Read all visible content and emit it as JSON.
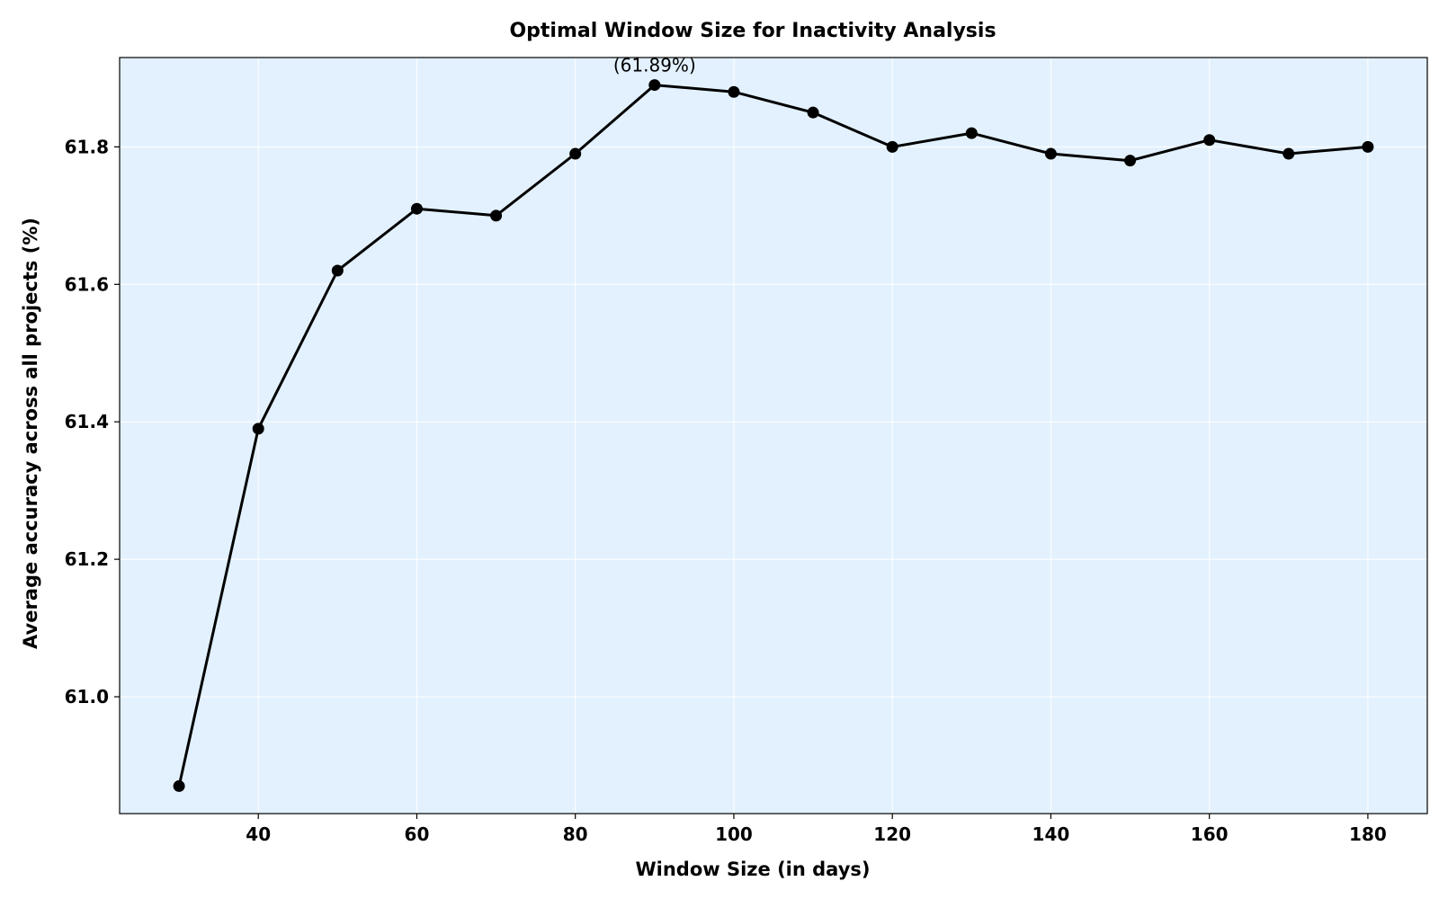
{
  "chart_data": {
    "type": "line",
    "title": "Optimal Window Size for Inactivity Analysis",
    "xlabel": "Window Size (in days)",
    "ylabel": "Average accuracy across all projects (%)",
    "xlim": [
      22.5,
      187.5
    ],
    "ylim": [
      60.83,
      61.93
    ],
    "xticks": [
      40,
      60,
      80,
      100,
      120,
      140,
      160,
      180
    ],
    "yticks": [
      61.0,
      61.2,
      61.4,
      61.6,
      61.8
    ],
    "xtick_labels": [
      "40",
      "60",
      "80",
      "100",
      "120",
      "140",
      "160",
      "180"
    ],
    "ytick_labels": [
      "61.0",
      "61.2",
      "61.4",
      "61.6",
      "61.8"
    ],
    "grid": true,
    "series": [
      {
        "x": [
          30,
          40,
          50,
          60,
          70,
          80,
          90,
          100,
          110,
          120,
          130,
          140,
          150,
          160,
          170,
          180
        ],
        "values": [
          60.87,
          61.39,
          61.62,
          61.71,
          61.7,
          61.79,
          61.89,
          61.88,
          61.85,
          61.8,
          61.82,
          61.79,
          61.78,
          61.81,
          61.79,
          61.8
        ]
      }
    ],
    "annotations": [
      {
        "text": "(61.89%)",
        "x": 90,
        "y": 61.89
      }
    ],
    "colors": {
      "plot_background": "#e3f1fe",
      "line": "#000000",
      "marker": "#000000",
      "grid": "#ffffff"
    }
  }
}
